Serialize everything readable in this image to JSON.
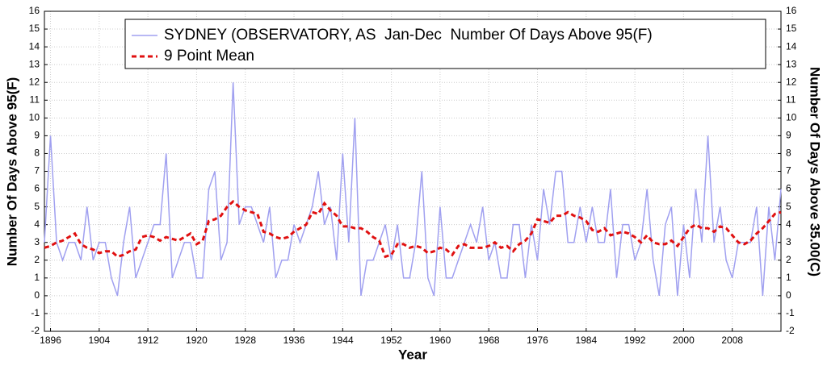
{
  "chart_data": {
    "type": "line",
    "xlabel": "Year",
    "ylabel": "Number Of Days Above 95(F)",
    "y2label": "Number Of Days Above 35.00(C)",
    "x": [
      1895,
      1896,
      1897,
      1898,
      1899,
      1900,
      1901,
      1902,
      1903,
      1904,
      1905,
      1906,
      1907,
      1908,
      1909,
      1910,
      1911,
      1912,
      1913,
      1914,
      1915,
      1916,
      1917,
      1918,
      1919,
      1920,
      1921,
      1922,
      1923,
      1924,
      1925,
      1926,
      1927,
      1928,
      1929,
      1930,
      1931,
      1932,
      1933,
      1934,
      1935,
      1936,
      1937,
      1938,
      1939,
      1940,
      1941,
      1942,
      1943,
      1944,
      1945,
      1946,
      1947,
      1948,
      1949,
      1950,
      1951,
      1952,
      1953,
      1954,
      1955,
      1956,
      1957,
      1958,
      1959,
      1960,
      1961,
      1962,
      1963,
      1964,
      1965,
      1966,
      1967,
      1968,
      1969,
      1970,
      1971,
      1972,
      1973,
      1974,
      1975,
      1976,
      1977,
      1978,
      1979,
      1980,
      1981,
      1982,
      1983,
      1984,
      1985,
      1986,
      1987,
      1988,
      1989,
      1990,
      1991,
      1992,
      1993,
      1994,
      1995,
      1996,
      1997,
      1998,
      1999,
      2000,
      2001,
      2002,
      2003,
      2004,
      2005,
      2006,
      2007,
      2008,
      2009,
      2010,
      2011,
      2012,
      2013,
      2014,
      2015,
      2016
    ],
    "series": [
      {
        "name": "SYDNEY (OBSERVATORY, AS  Jan-Dec  Number Of Days Above 95(F)",
        "color": "#a0a0f0",
        "dashed": false,
        "width": 1.5,
        "values": [
          3,
          9,
          3,
          2,
          3,
          3,
          2,
          5,
          2,
          3,
          3,
          1,
          0,
          3,
          5,
          1,
          2,
          3,
          4,
          4,
          8,
          1,
          2,
          3,
          3,
          1,
          1,
          6,
          7,
          2,
          3,
          12,
          4,
          5,
          5,
          4,
          3,
          5,
          1,
          2,
          2,
          4,
          3,
          4,
          5,
          7,
          4,
          5,
          2,
          8,
          3,
          10,
          0,
          2,
          2,
          3,
          4,
          2,
          4,
          1,
          1,
          3,
          7,
          1,
          0,
          5,
          1,
          1,
          2,
          3,
          4,
          3,
          5,
          2,
          3,
          1,
          1,
          4,
          4,
          1,
          4,
          2,
          6,
          4,
          7,
          7,
          3,
          3,
          5,
          3,
          5,
          3,
          3,
          6,
          1,
          4,
          4,
          2,
          3,
          6,
          2,
          0,
          4,
          5,
          0,
          4,
          1,
          6,
          3,
          9,
          3,
          5,
          2,
          1,
          3,
          3,
          3,
          5,
          0,
          5,
          2,
          6
        ]
      },
      {
        "name": "9 Point Mean",
        "color": "#e01010",
        "dashed": true,
        "width": 3,
        "values": [
          2.7,
          2.8,
          3.0,
          3.1,
          3.3,
          3.5,
          2.9,
          2.7,
          2.6,
          2.4,
          2.5,
          2.5,
          2.2,
          2.3,
          2.5,
          2.6,
          3.3,
          3.4,
          3.3,
          3.1,
          3.3,
          3.2,
          3.1,
          3.3,
          3.5,
          2.9,
          3.1,
          4.2,
          4.3,
          4.5,
          5.0,
          5.3,
          5.0,
          4.8,
          4.7,
          4.6,
          3.6,
          3.5,
          3.3,
          3.2,
          3.3,
          3.6,
          3.8,
          4.0,
          4.7,
          4.6,
          5.2,
          4.8,
          4.5,
          3.9,
          3.9,
          3.8,
          3.8,
          3.6,
          3.3,
          3.1,
          2.2,
          2.3,
          2.9,
          2.9,
          2.7,
          2.8,
          2.7,
          2.4,
          2.5,
          2.7,
          2.6,
          2.3,
          2.8,
          2.9,
          2.7,
          2.7,
          2.7,
          2.8,
          3.0,
          2.7,
          2.8,
          2.5,
          2.9,
          3.1,
          3.5,
          4.3,
          4.2,
          4.1,
          4.5,
          4.5,
          4.7,
          4.5,
          4.4,
          4.2,
          3.7,
          3.6,
          3.8,
          3.4,
          3.5,
          3.6,
          3.5,
          3.3,
          3.0,
          3.4,
          3.0,
          2.9,
          2.9,
          3.1,
          2.8,
          3.3,
          3.8,
          4.0,
          3.8,
          3.8,
          3.6,
          3.9,
          3.8,
          3.4,
          3.0,
          2.9,
          3.1,
          3.5,
          3.8,
          4.2,
          4.6,
          4.7
        ]
      }
    ],
    "xlim": [
      1895,
      2016
    ],
    "xticks": [
      1896,
      1904,
      1912,
      1920,
      1928,
      1936,
      1944,
      1952,
      1960,
      1968,
      1976,
      1984,
      1992,
      2000,
      2008
    ],
    "ylim": [
      -2,
      16
    ],
    "yticks": [
      -2,
      -1,
      0,
      1,
      2,
      3,
      4,
      5,
      6,
      7,
      8,
      9,
      10,
      11,
      12,
      13,
      14,
      15,
      16
    ],
    "y2lim": [
      -2,
      16
    ],
    "y2ticks": [
      -2,
      -1,
      0,
      1,
      2,
      3,
      4,
      5,
      6,
      7,
      8,
      9,
      10,
      11,
      12,
      13,
      14,
      15,
      16
    ],
    "grid": true,
    "legend": "top"
  }
}
